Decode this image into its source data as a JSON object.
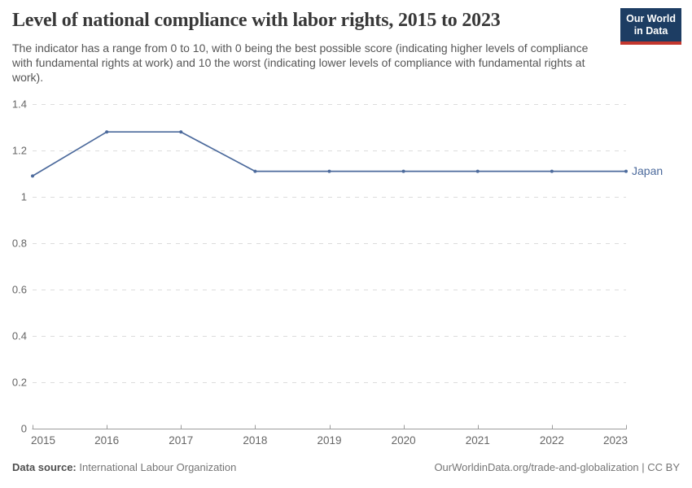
{
  "header": {
    "title": "Level of national compliance with labor rights, 2015 to 2023",
    "subtitle": "The indicator has a range from 0 to 10, with 0 being the best possible score (indicating higher levels of compliance with fundamental rights at work) and 10 the worst (indicating lower levels of compliance with fundamental rights at work).",
    "logo_line1": "Our World",
    "logo_line2": "in Data"
  },
  "chart_data": {
    "type": "line",
    "title": "Level of national compliance with labor rights, 2015 to 2023",
    "x": [
      2015,
      2016,
      2017,
      2018,
      2019,
      2020,
      2021,
      2022,
      2023
    ],
    "xtick_labels": [
      "2015",
      "2016",
      "2017",
      "2018",
      "2019",
      "2020",
      "2021",
      "2022",
      "2023"
    ],
    "series": [
      {
        "name": "Japan",
        "color": "#4c6a9c",
        "values": [
          1.09,
          1.28,
          1.28,
          1.11,
          1.11,
          1.11,
          1.11,
          1.11,
          1.11
        ]
      }
    ],
    "xlabel": "",
    "ylabel": "",
    "ylim": [
      0,
      1.4
    ],
    "yticks": [
      0,
      0.2,
      0.4,
      0.6,
      0.8,
      1,
      1.2,
      1.4
    ],
    "ytick_labels": [
      "0",
      "0.2",
      "0.4",
      "0.6",
      "0.8",
      "1",
      "1.2",
      "1.4"
    ],
    "grid": "horizontal dashed",
    "legend": "line-end label"
  },
  "footer": {
    "datasource_label": "Data source:",
    "datasource_value": "International Labour Organization",
    "attribution": "OurWorldinData.org/trade-and-globalization | CC BY"
  },
  "colors": {
    "line": "#4c6a9c",
    "grid": "#dcdcdc",
    "axis": "#9b9b9b",
    "tick_text": "#666666",
    "logo_bg": "#1d3d63",
    "logo_bar": "#c3372e",
    "title_text": "#383838",
    "subtitle_text": "#555555",
    "footer_text": "#757575"
  }
}
